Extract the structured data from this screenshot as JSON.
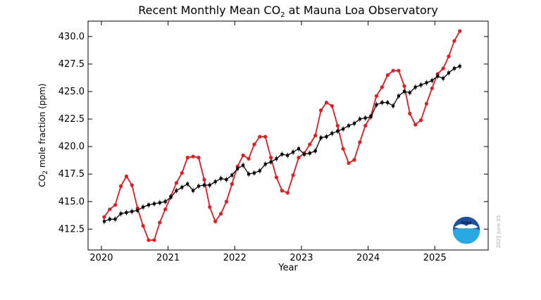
{
  "chart_data": {
    "type": "line",
    "title_main": "Recent Monthly Mean CO",
    "title_sub": "2",
    "title_tail": " at Mauna Loa Observatory",
    "xlabel": "Year",
    "ylabel_main": "CO",
    "ylabel_sub": "2",
    "ylabel_tail": " mole fraction (ppm)",
    "xlim": [
      2019.8,
      2025.8
    ],
    "ylim": [
      410.6,
      431.4
    ],
    "x_ticks": [
      2020,
      2021,
      2022,
      2023,
      2024,
      2025
    ],
    "x_tick_labels": [
      "2020",
      "2021",
      "2022",
      "2023",
      "2024",
      "2025"
    ],
    "y_ticks": [
      412.5,
      415.0,
      417.5,
      420.0,
      422.5,
      425.0,
      427.5,
      430.0
    ],
    "y_tick_labels": [
      "412.5",
      "415.0",
      "417.5",
      "420.0",
      "422.5",
      "425.0",
      "427.5",
      "430.0"
    ],
    "grid": false,
    "series": [
      {
        "color": "#e8191f",
        "marker": "circle",
        "x": [
          2020.042,
          2020.125,
          2020.208,
          2020.292,
          2020.375,
          2020.458,
          2020.542,
          2020.625,
          2020.708,
          2020.792,
          2020.875,
          2020.958,
          2021.042,
          2021.125,
          2021.208,
          2021.292,
          2021.375,
          2021.458,
          2021.542,
          2021.625,
          2021.708,
          2021.792,
          2021.875,
          2021.958,
          2022.042,
          2022.125,
          2022.208,
          2022.292,
          2022.375,
          2022.458,
          2022.542,
          2022.625,
          2022.708,
          2022.792,
          2022.875,
          2022.958,
          2023.042,
          2023.125,
          2023.208,
          2023.292,
          2023.375,
          2023.458,
          2023.542,
          2023.625,
          2023.708,
          2023.792,
          2023.875,
          2023.958,
          2024.042,
          2024.125,
          2024.208,
          2024.292,
          2024.375,
          2024.458,
          2024.542,
          2024.625,
          2024.708,
          2024.792,
          2024.875,
          2024.958,
          2025.042,
          2025.125,
          2025.208,
          2025.292,
          2025.375
        ],
        "y": [
          413.6,
          414.3,
          414.7,
          416.4,
          417.3,
          416.5,
          414.4,
          412.8,
          411.5,
          411.5,
          413.1,
          414.3,
          415.5,
          416.7,
          417.6,
          419.0,
          419.1,
          419.0,
          417.0,
          414.5,
          413.2,
          413.9,
          415.0,
          416.6,
          418.2,
          419.2,
          418.9,
          420.2,
          420.9,
          420.9,
          419.0,
          417.2,
          416.0,
          415.8,
          417.4,
          419.0,
          419.4,
          420.2,
          421.0,
          423.3,
          424.0,
          423.7,
          421.9,
          419.8,
          418.5,
          418.8,
          420.4,
          421.9,
          422.8,
          424.6,
          425.4,
          426.5,
          426.9,
          426.9,
          425.5,
          423.0,
          422.0,
          422.4,
          423.9,
          425.3,
          426.6,
          427.1,
          428.2,
          429.6,
          430.5
        ]
      },
      {
        "color": "#000000",
        "marker": "square",
        "x": [
          2020.042,
          2020.125,
          2020.208,
          2020.292,
          2020.375,
          2020.458,
          2020.542,
          2020.625,
          2020.708,
          2020.792,
          2020.875,
          2020.958,
          2021.042,
          2021.125,
          2021.208,
          2021.292,
          2021.375,
          2021.458,
          2021.542,
          2021.625,
          2021.708,
          2021.792,
          2021.875,
          2021.958,
          2022.042,
          2022.125,
          2022.208,
          2022.292,
          2022.375,
          2022.458,
          2022.542,
          2022.625,
          2022.708,
          2022.792,
          2022.875,
          2022.958,
          2023.042,
          2023.125,
          2023.208,
          2023.292,
          2023.375,
          2023.458,
          2023.542,
          2023.625,
          2023.708,
          2023.792,
          2023.875,
          2023.958,
          2024.042,
          2024.125,
          2024.208,
          2024.292,
          2024.375,
          2024.458,
          2024.542,
          2024.625,
          2024.708,
          2024.792,
          2024.875,
          2024.958,
          2025.042,
          2025.125,
          2025.208,
          2025.292,
          2025.375
        ],
        "y": [
          413.2,
          413.4,
          413.4,
          413.9,
          414.0,
          414.1,
          414.2,
          414.5,
          414.7,
          414.8,
          414.9,
          415.0,
          415.4,
          416.0,
          416.3,
          416.6,
          416.0,
          416.4,
          416.5,
          416.5,
          416.8,
          417.1,
          417.0,
          417.4,
          418.0,
          418.3,
          417.5,
          417.6,
          417.8,
          418.4,
          418.6,
          418.9,
          419.3,
          419.2,
          419.5,
          419.8,
          419.3,
          419.4,
          419.6,
          420.8,
          420.9,
          421.2,
          421.4,
          421.6,
          421.9,
          422.1,
          422.5,
          422.6,
          422.7,
          423.8,
          424.0,
          424.0,
          423.7,
          424.6,
          425.0,
          424.9,
          425.4,
          425.6,
          425.8,
          426.0,
          426.4,
          426.2,
          426.7,
          427.1,
          427.3
        ]
      }
    ]
  },
  "watermark": {
    "icon": "noaa-logo-icon",
    "text": "NOAA",
    "date": "2025 June 05"
  }
}
